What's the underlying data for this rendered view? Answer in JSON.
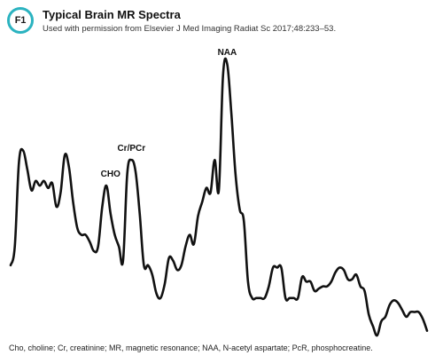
{
  "figure": {
    "badge": "F1",
    "title": "Typical Brain MR Spectra",
    "subtitle": "Used with permission from Elsevier J Med Imaging Radiat Sc 2017;48:233–53.",
    "caption": "Cho, choline; Cr, creatinine; MR, magnetic resonance; NAA, N-acetyl aspartate; PcR, phosphocreatine."
  },
  "chart_data": {
    "type": "line",
    "title": "Typical Brain MR Spectra",
    "xlabel": "",
    "ylabel": "",
    "grid": false,
    "legend": "none",
    "series": [
      {
        "color": "#111111",
        "x": [
          0,
          1,
          2,
          3,
          4,
          5,
          6,
          7,
          8,
          9,
          10,
          11,
          12,
          13,
          14,
          15,
          16,
          17,
          18,
          19,
          20,
          21,
          22,
          23,
          24,
          25,
          26,
          27,
          28,
          29,
          30,
          31,
          32,
          33,
          34,
          35,
          36,
          37,
          38,
          39,
          40,
          41,
          42,
          43,
          44,
          45,
          46,
          47,
          48,
          49,
          50,
          51,
          52,
          53,
          54,
          55,
          56,
          57,
          58,
          59,
          60,
          61,
          62,
          63,
          64,
          65,
          66,
          67,
          68,
          69,
          70,
          71,
          72,
          73,
          74,
          75,
          76,
          77,
          78,
          79,
          80,
          81,
          82,
          83,
          84,
          85,
          86,
          87,
          88,
          89,
          90,
          91,
          92,
          93,
          94,
          95,
          96,
          97,
          98,
          99,
          100
        ],
        "y": [
          14,
          22,
          58,
          63,
          55,
          46,
          50,
          48,
          50,
          47,
          49,
          39,
          45,
          61,
          56,
          41,
          30,
          27,
          27,
          24,
          20,
          22,
          39,
          48,
          36,
          27,
          22,
          16,
          53,
          59,
          54,
          36,
          14,
          14,
          10,
          2,
          0,
          6,
          17,
          16,
          12,
          14,
          22,
          27,
          23,
          35,
          41,
          47,
          45,
          59,
          46,
          95,
          100,
          79,
          53,
          38,
          33,
          7,
          0,
          0,
          0,
          0,
          5,
          13,
          13,
          13,
          0,
          0,
          0,
          0,
          9,
          7,
          7,
          3,
          4,
          5,
          5,
          7,
          11,
          13,
          12,
          8,
          8,
          10,
          5,
          3,
          -7,
          -12,
          -16,
          -10,
          -8,
          -3,
          -1,
          -2,
          -5,
          -8,
          -6,
          -6,
          -6,
          -9,
          -14
        ]
      }
    ],
    "annotations": [
      {
        "label": "CHO",
        "x": 24,
        "y": 48
      },
      {
        "label": "Cr/PCr",
        "x": 29,
        "y": 59
      },
      {
        "label": "NAA",
        "x": 52,
        "y": 100
      }
    ],
    "xlim": [
      0,
      100
    ],
    "ylim": [
      -16,
      100
    ]
  }
}
